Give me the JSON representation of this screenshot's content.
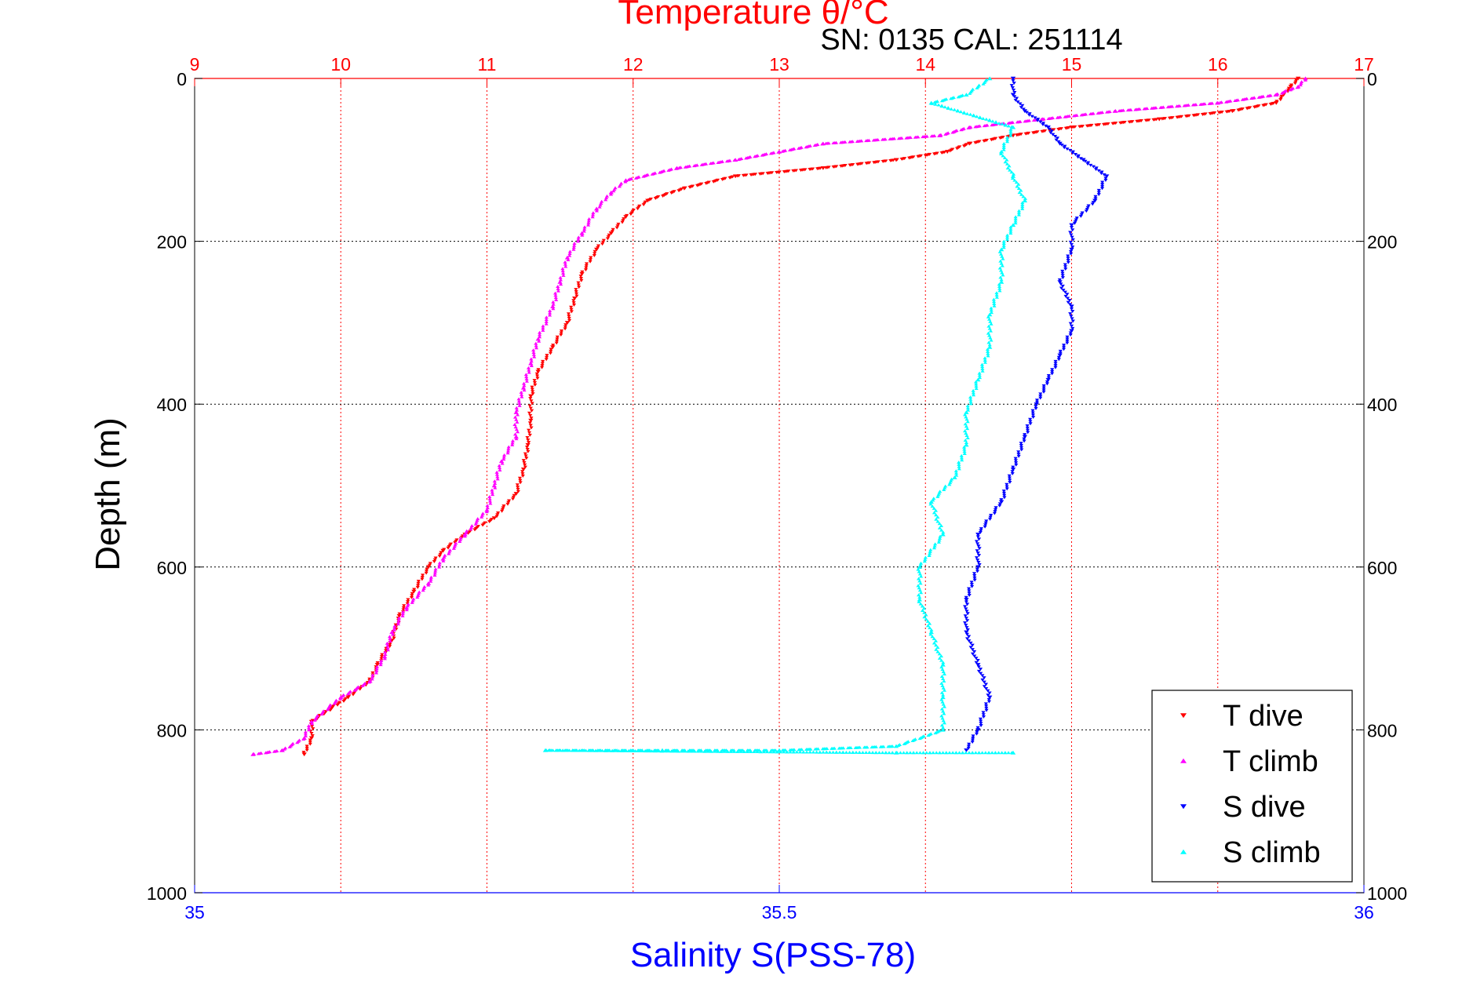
{
  "chart_data": {
    "type": "scatter",
    "title": "Temperature θ/°C",
    "subtitle": "SN: 0135  CAL: 251114",
    "ylabel": "Depth (m)",
    "xlabel": "Salinity S(PSS-78)",
    "depth_axis": {
      "range": [
        0,
        1000
      ],
      "reversed": true,
      "ticks": [
        0,
        200,
        400,
        600,
        800,
        1000
      ],
      "tick_labels": [
        "0",
        "200",
        "400",
        "600",
        "800",
        "1000"
      ]
    },
    "temperature_axis": {
      "position": "top",
      "range": [
        9,
        17
      ],
      "ticks": [
        9,
        10,
        11,
        12,
        13,
        14,
        15,
        16,
        17
      ],
      "tick_labels": [
        "9",
        "10",
        "11",
        "12",
        "13",
        "14",
        "15",
        "16",
        "17"
      ],
      "color": "#ff0000"
    },
    "salinity_axis": {
      "position": "bottom",
      "range": [
        35,
        36
      ],
      "ticks": [
        35,
        35.5,
        36
      ],
      "tick_labels": [
        "35",
        "35.5",
        "36"
      ],
      "color": "#0000ff"
    },
    "grid": true,
    "legend_position": "bottom-right",
    "series": [
      {
        "name": "T dive",
        "axis": "temperature",
        "color": "#ff0000",
        "marker": "triangle-down",
        "points": [
          [
            16.55,
            0
          ],
          [
            16.5,
            10
          ],
          [
            16.45,
            20
          ],
          [
            16.4,
            30
          ],
          [
            16.1,
            40
          ],
          [
            15.6,
            50
          ],
          [
            15.0,
            60
          ],
          [
            14.6,
            70
          ],
          [
            14.3,
            80
          ],
          [
            14.15,
            90
          ],
          [
            13.8,
            100
          ],
          [
            13.3,
            110
          ],
          [
            12.7,
            120
          ],
          [
            12.35,
            135
          ],
          [
            12.1,
            150
          ],
          [
            11.95,
            170
          ],
          [
            11.85,
            190
          ],
          [
            11.75,
            210
          ],
          [
            11.65,
            240
          ],
          [
            11.6,
            270
          ],
          [
            11.55,
            300
          ],
          [
            11.45,
            330
          ],
          [
            11.35,
            360
          ],
          [
            11.3,
            390
          ],
          [
            11.3,
            420
          ],
          [
            11.28,
            450
          ],
          [
            11.25,
            480
          ],
          [
            11.2,
            510
          ],
          [
            11.05,
            540
          ],
          [
            10.85,
            560
          ],
          [
            10.7,
            580
          ],
          [
            10.6,
            600
          ],
          [
            10.5,
            630
          ],
          [
            10.4,
            660
          ],
          [
            10.35,
            690
          ],
          [
            10.25,
            720
          ],
          [
            10.2,
            740
          ],
          [
            10.05,
            760
          ],
          [
            9.8,
            790
          ],
          [
            9.8,
            810
          ],
          [
            9.75,
            830
          ]
        ]
      },
      {
        "name": "T climb",
        "axis": "temperature",
        "color": "#ff00ff",
        "marker": "triangle-up",
        "points": [
          [
            16.6,
            0
          ],
          [
            16.55,
            10
          ],
          [
            16.4,
            20
          ],
          [
            16.0,
            30
          ],
          [
            15.3,
            40
          ],
          [
            14.8,
            50
          ],
          [
            14.3,
            60
          ],
          [
            14.1,
            70
          ],
          [
            13.3,
            80
          ],
          [
            13.0,
            90
          ],
          [
            12.7,
            100
          ],
          [
            12.3,
            110
          ],
          [
            11.95,
            125
          ],
          [
            11.85,
            140
          ],
          [
            11.75,
            160
          ],
          [
            11.65,
            190
          ],
          [
            11.55,
            220
          ],
          [
            11.5,
            250
          ],
          [
            11.45,
            280
          ],
          [
            11.35,
            320
          ],
          [
            11.3,
            350
          ],
          [
            11.25,
            380
          ],
          [
            11.2,
            410
          ],
          [
            11.2,
            440
          ],
          [
            11.1,
            470
          ],
          [
            11.05,
            500
          ],
          [
            11.0,
            530
          ],
          [
            10.85,
            560
          ],
          [
            10.7,
            590
          ],
          [
            10.6,
            620
          ],
          [
            10.45,
            650
          ],
          [
            10.35,
            680
          ],
          [
            10.3,
            710
          ],
          [
            10.2,
            740
          ],
          [
            10.0,
            760
          ],
          [
            9.8,
            790
          ],
          [
            9.75,
            810
          ],
          [
            9.6,
            825
          ],
          [
            9.4,
            830
          ]
        ]
      },
      {
        "name": "S dive",
        "axis": "salinity",
        "color": "#0000ff",
        "marker": "triangle-down",
        "points": [
          [
            35.7,
            0
          ],
          [
            35.7,
            20
          ],
          [
            35.71,
            40
          ],
          [
            35.73,
            60
          ],
          [
            35.74,
            80
          ],
          [
            35.76,
            100
          ],
          [
            35.78,
            120
          ],
          [
            35.77,
            150
          ],
          [
            35.75,
            180
          ],
          [
            35.75,
            210
          ],
          [
            35.74,
            250
          ],
          [
            35.75,
            280
          ],
          [
            35.75,
            310
          ],
          [
            35.74,
            340
          ],
          [
            35.73,
            370
          ],
          [
            35.72,
            400
          ],
          [
            35.71,
            440
          ],
          [
            35.7,
            480
          ],
          [
            35.69,
            520
          ],
          [
            35.67,
            560
          ],
          [
            35.67,
            600
          ],
          [
            35.66,
            640
          ],
          [
            35.66,
            680
          ],
          [
            35.67,
            720
          ],
          [
            35.68,
            760
          ],
          [
            35.67,
            800
          ],
          [
            35.66,
            825
          ]
        ]
      },
      {
        "name": "S climb",
        "axis": "salinity",
        "color": "#00ffff",
        "marker": "triangle-up",
        "points": [
          [
            35.68,
            0
          ],
          [
            35.66,
            20
          ],
          [
            35.63,
            30
          ],
          [
            35.7,
            60
          ],
          [
            35.69,
            90
          ],
          [
            35.7,
            120
          ],
          [
            35.71,
            150
          ],
          [
            35.7,
            180
          ],
          [
            35.69,
            210
          ],
          [
            35.69,
            250
          ],
          [
            35.68,
            290
          ],
          [
            35.68,
            330
          ],
          [
            35.67,
            370
          ],
          [
            35.66,
            410
          ],
          [
            35.66,
            450
          ],
          [
            35.65,
            490
          ],
          [
            35.63,
            520
          ],
          [
            35.64,
            560
          ],
          [
            35.62,
            600
          ],
          [
            35.62,
            640
          ],
          [
            35.63,
            680
          ],
          [
            35.64,
            720
          ],
          [
            35.64,
            760
          ],
          [
            35.64,
            800
          ],
          [
            35.6,
            820
          ],
          [
            35.5,
            825
          ],
          [
            35.4,
            825
          ],
          [
            35.3,
            825
          ],
          [
            35.6,
            828
          ],
          [
            35.7,
            828
          ]
        ]
      }
    ]
  }
}
